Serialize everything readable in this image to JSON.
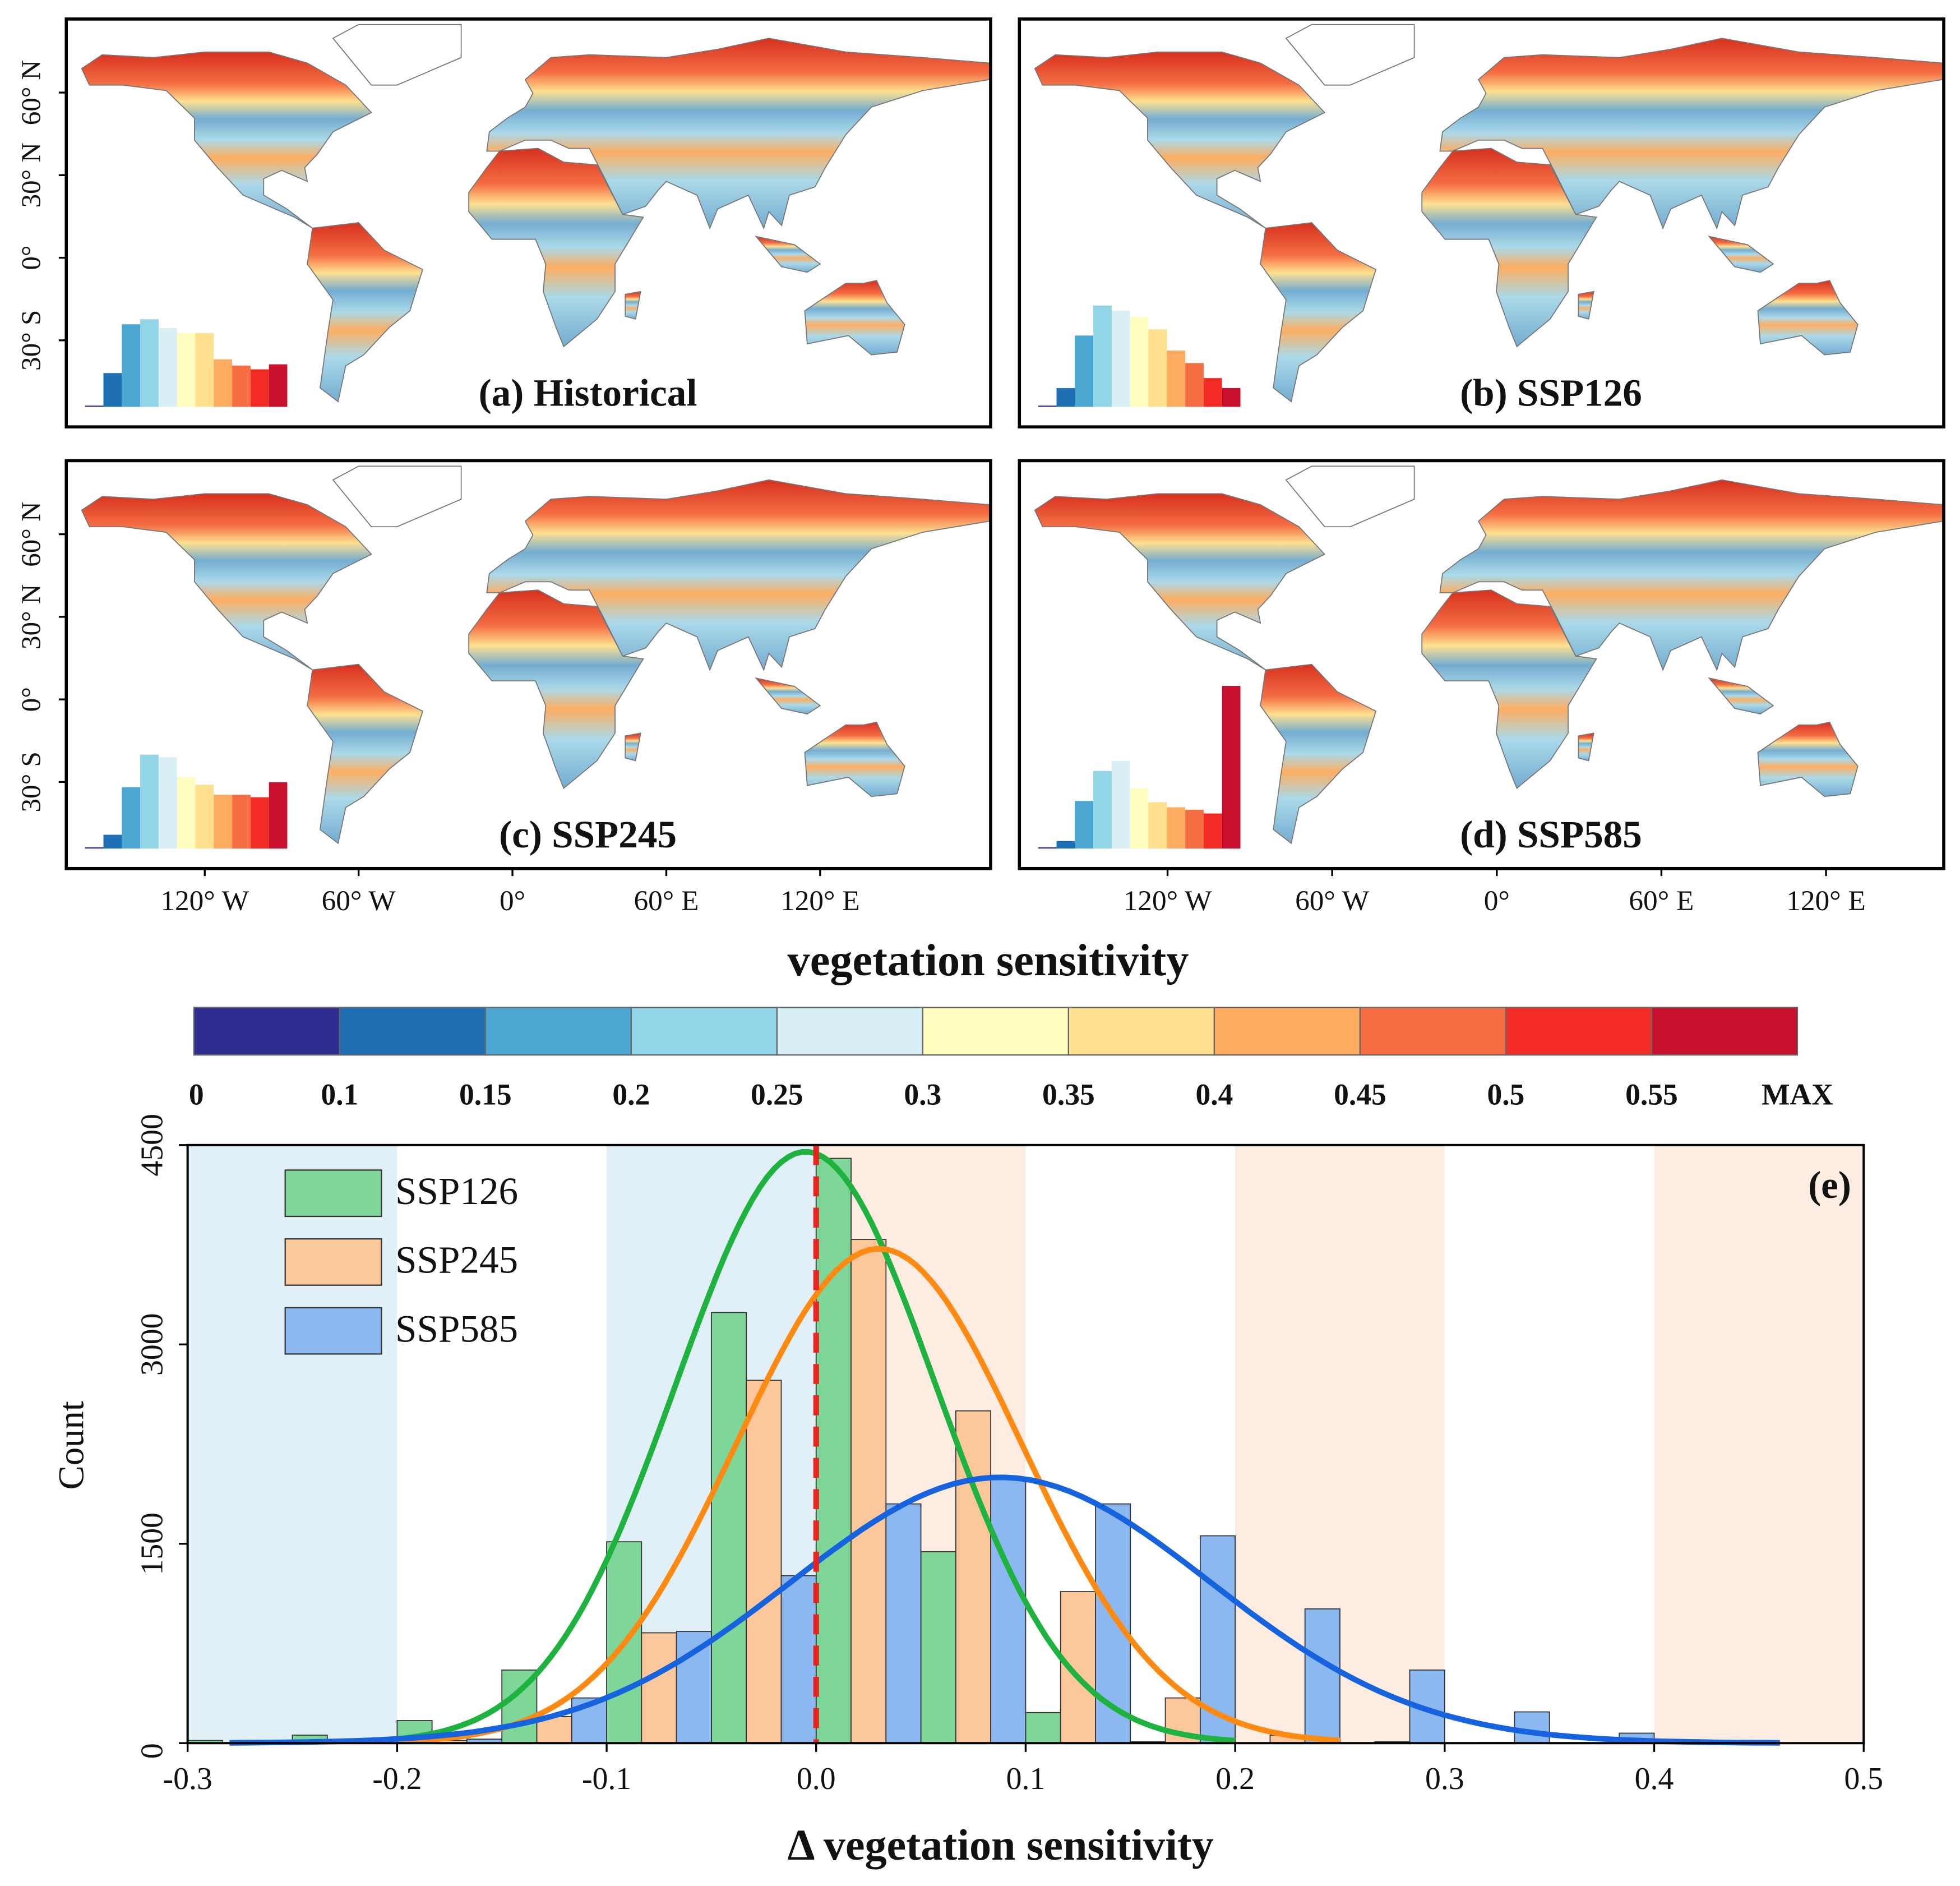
{
  "maps": {
    "lat_labels": [
      "60° N",
      "30° N",
      "0°",
      "30° S"
    ],
    "lon_labels": [
      "120° W",
      "60° W",
      "0°",
      "60° E",
      "120° E"
    ],
    "panels": [
      {
        "title": "(a) Historical",
        "histogram": [
          1,
          27,
          66,
          70,
          63,
          59,
          59,
          38,
          33,
          30,
          34
        ]
      },
      {
        "title": "(b) SSP126",
        "histogram": [
          1,
          15,
          57,
          81,
          77,
          72,
          62,
          45,
          35,
          23,
          15
        ]
      },
      {
        "title": "(c) SSP245",
        "histogram": [
          1,
          11,
          49,
          75,
          73,
          57,
          51,
          43,
          43,
          41,
          53
        ]
      },
      {
        "title": "(d) SSP585",
        "histogram": [
          1,
          6,
          38,
          62,
          70,
          48,
          37,
          33,
          31,
          28,
          130
        ]
      }
    ]
  },
  "colorbar": {
    "title": "vegetation sensitivity",
    "colors": [
      "#2e2d8f",
      "#1f6fb4",
      "#4ba6d2",
      "#92d4e8",
      "#d8eff6",
      "#fffcc0",
      "#fee08e",
      "#fdab5f",
      "#f46d43",
      "#f22b25",
      "#c8102e"
    ],
    "labels": [
      "0",
      "0.1",
      "0.15",
      "0.2",
      "0.25",
      "0.3",
      "0.35",
      "0.4",
      "0.45",
      "0.5",
      "0.55",
      "MAX"
    ]
  },
  "chart_data": {
    "type": "histogram",
    "label": "(e)",
    "xlabel": "Δ vegetation sensitivity",
    "ylabel": "Count",
    "bins": [
      -0.3,
      -0.25,
      -0.2,
      -0.15,
      -0.1,
      -0.05,
      0,
      0.05,
      0.1,
      0.15,
      0.2,
      0.25,
      0.3,
      0.35,
      0.4,
      0.45,
      0.5
    ],
    "series": [
      {
        "name": "SSP126",
        "color": "#7fd699",
        "line_color": "#1db33e",
        "values": [
          20,
          60,
          170,
          550,
          1515,
          3240,
          4400,
          1440,
          230,
          10,
          0,
          0,
          0,
          0,
          0,
          0
        ],
        "fit": {
          "mean": -0.005,
          "sd": 0.062,
          "peak": 4450,
          "xrange": [
            -0.2,
            0.2
          ]
        }
      },
      {
        "name": "SSP245",
        "color": "#fdc79c",
        "line_color": "#ff8a12",
        "values": [
          0,
          5,
          20,
          200,
          830,
          2730,
          3790,
          2500,
          1140,
          340,
          60,
          10,
          5,
          0,
          0,
          0
        ],
        "fit": {
          "mean": 0.03,
          "sd": 0.068,
          "peak": 3720,
          "xrange": [
            -0.2,
            0.25
          ]
        }
      },
      {
        "name": "SSP585",
        "color": "#8cb8f2",
        "line_color": "#1663e0",
        "values": [
          0,
          0,
          30,
          340,
          840,
          1260,
          1800,
          2000,
          1800,
          1560,
          1010,
          550,
          235,
          75,
          10,
          0
        ],
        "fit": {
          "mean": 0.088,
          "sd": 0.1,
          "peak": 2000,
          "xrange": [
            -0.28,
            0.46
          ]
        }
      }
    ],
    "bands": [
      {
        "range": [
          -0.3,
          -0.2
        ],
        "color": "#e1f0f7"
      },
      {
        "range": [
          -0.1,
          0
        ],
        "color": "#e1f0f7"
      },
      {
        "range": [
          0,
          0.1
        ],
        "color": "#fdece2"
      },
      {
        "range": [
          0.2,
          0.3
        ],
        "color": "#fdece2"
      },
      {
        "range": [
          0.4,
          0.5
        ],
        "color": "#fdece2"
      }
    ],
    "zero_line": 0,
    "zero_line_color": "#e8231f",
    "xlim": [
      -0.3,
      0.5
    ],
    "xticks": [
      -0.3,
      -0.2,
      -0.1,
      {
        "value": 0,
        "label": "0.0"
      },
      0.1,
      0.2,
      0.3,
      0.4,
      0.5
    ],
    "ylim": [
      0,
      4500
    ],
    "yticks": [
      0,
      1500,
      3000,
      4500
    ]
  }
}
